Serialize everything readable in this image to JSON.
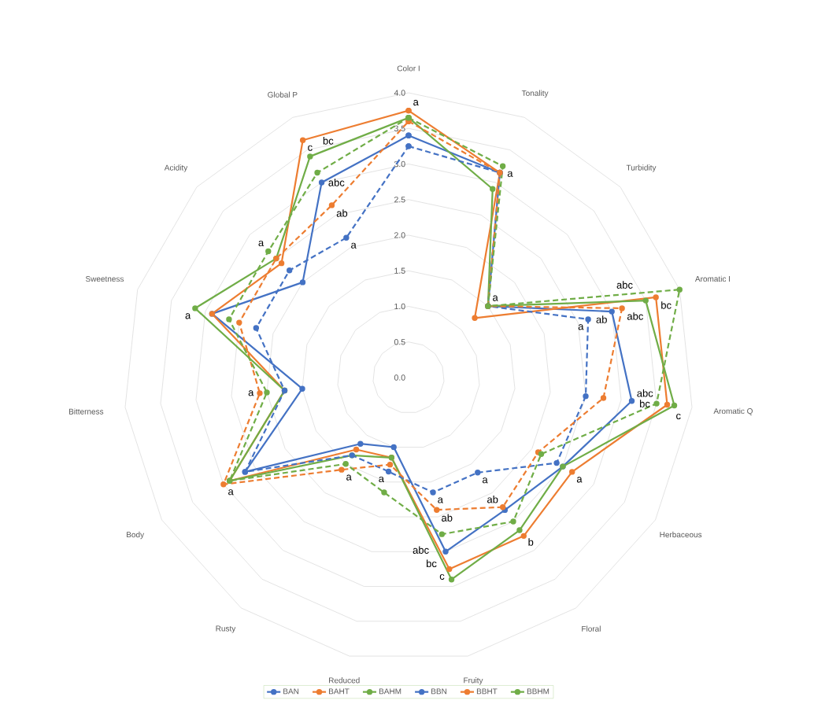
{
  "chart_data": {
    "type": "radar",
    "categories": [
      "Color I",
      "Tonality",
      "Turbidity",
      "Aromatic I",
      "Aromatic Q",
      "Herbaceous",
      "Floral",
      "Fruity",
      "Reduced",
      "Rusty",
      "Body",
      "Bitterness",
      "Sweetness",
      "Acidity",
      "Global P"
    ],
    "series": [
      {
        "name": "BAN",
        "color": "#4472c4",
        "line_style": "solid",
        "values": [
          3.4,
          3.15,
          1.5,
          3.0,
          3.15,
          2.5,
          2.3,
          2.5,
          1.0,
          1.15,
          2.65,
          1.5,
          2.9,
          2.0,
          3.0
        ],
        "value_labels": [
          null,
          null,
          null,
          "ab",
          "abc",
          null,
          null,
          "bc",
          null,
          null,
          null,
          null,
          null,
          null,
          "abc"
        ]
      },
      {
        "name": "BAHT",
        "color": "#ed7d31",
        "line_style": "solid",
        "values": [
          3.75,
          3.15,
          1.25,
          3.65,
          3.65,
          2.65,
          2.75,
          2.75,
          1.15,
          1.25,
          2.9,
          1.75,
          2.9,
          2.4,
          3.65
        ],
        "value_labels": [
          "a",
          null,
          null,
          "bc",
          "c",
          "a",
          null,
          "c",
          null,
          null,
          null,
          null,
          null,
          null,
          "c"
        ]
      },
      {
        "name": "BAHM",
        "color": "#70ad47",
        "line_style": "solid",
        "values": [
          3.65,
          2.9,
          1.5,
          3.5,
          3.75,
          2.5,
          2.65,
          2.9,
          1.15,
          1.35,
          2.9,
          1.75,
          3.15,
          2.5,
          3.4
        ],
        "value_labels": [
          null,
          null,
          null,
          "abc",
          null,
          null,
          "b",
          null,
          null,
          null,
          null,
          null,
          "a",
          null,
          "bc"
        ]
      },
      {
        "name": "BBN",
        "color": "#4472c4",
        "line_style": "dashed",
        "values": [
          3.25,
          3.15,
          1.5,
          2.65,
          2.5,
          2.4,
          1.65,
          1.65,
          1.35,
          1.35,
          2.65,
          1.75,
          2.25,
          2.25,
          2.15
        ],
        "value_labels": [
          null,
          null,
          null,
          "a",
          null,
          null,
          "a",
          "a",
          "a",
          null,
          null,
          null,
          null,
          null,
          "a"
        ]
      },
      {
        "name": "BBHT",
        "color": "#ed7d31",
        "line_style": "dashed",
        "values": [
          3.6,
          3.15,
          1.5,
          3.15,
          2.75,
          2.1,
          2.25,
          1.9,
          1.25,
          1.6,
          3.0,
          2.1,
          2.5,
          2.5,
          2.65
        ],
        "value_labels": [
          null,
          null,
          "a",
          "abc",
          null,
          null,
          "ab",
          "ab",
          null,
          "a",
          "a",
          "a",
          null,
          null,
          "ab"
        ]
      },
      {
        "name": "BBHM",
        "color": "#70ad47",
        "line_style": "dashed",
        "values": [
          3.65,
          3.25,
          1.5,
          4.0,
          3.5,
          2.15,
          2.5,
          2.25,
          1.65,
          1.5,
          2.9,
          2.0,
          2.65,
          2.65,
          3.15
        ],
        "value_labels": [
          null,
          "a",
          null,
          null,
          "bc",
          null,
          null,
          "abc",
          null,
          null,
          null,
          null,
          null,
          "a",
          null
        ]
      }
    ],
    "ylim": [
      0,
      4
    ],
    "yticks": [
      {
        "value": 0,
        "label": "0.0"
      },
      {
        "value": 0.5,
        "label": "0.5"
      },
      {
        "value": 1,
        "label": "1.0"
      },
      {
        "value": 1.5,
        "label": "1.5"
      },
      {
        "value": 2,
        "label": "2.0"
      },
      {
        "value": 2.5,
        "label": "2.5"
      },
      {
        "value": 3,
        "label": "3.0"
      },
      {
        "value": 3.5,
        "label": "3.5"
      },
      {
        "value": 4,
        "label": "4.0"
      }
    ],
    "grid": true,
    "legend": "bottom",
    "marker": "circle"
  }
}
